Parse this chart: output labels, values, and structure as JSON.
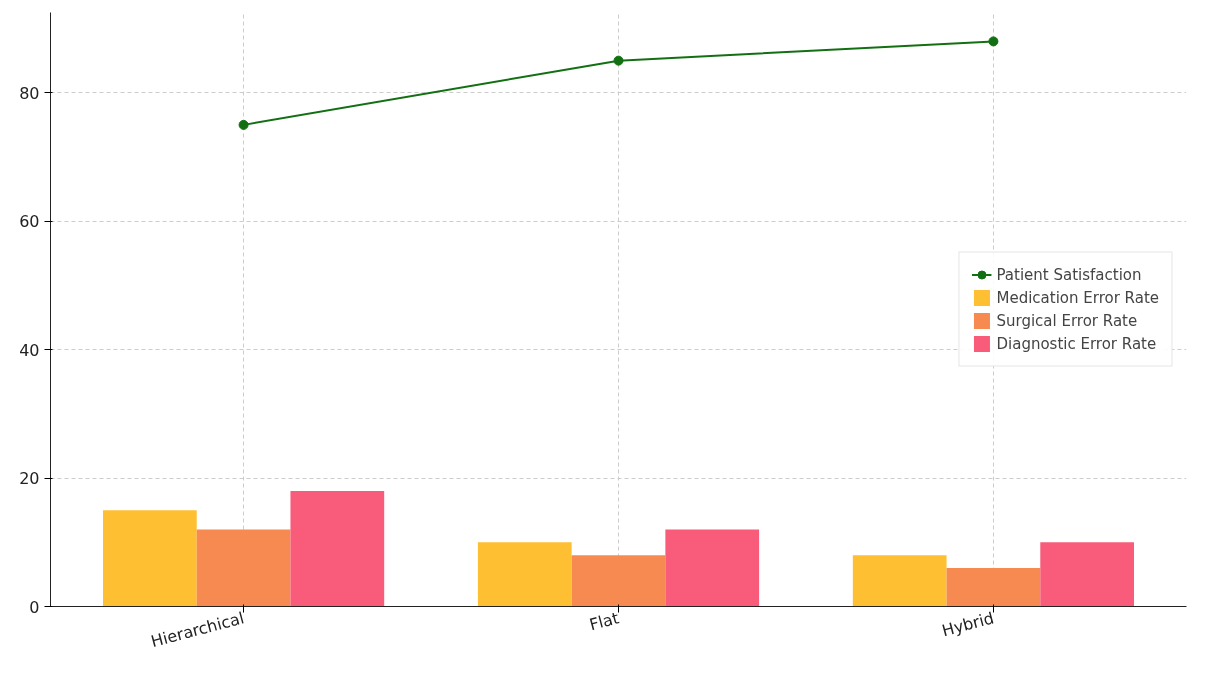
{
  "chart_data": {
    "type": "bar",
    "categories": [
      "Hierarchical",
      "Flat",
      "Hybrid"
    ],
    "series": [
      {
        "name": "Patient Satisfaction",
        "type": "line",
        "color": "#127012",
        "values": [
          75,
          85,
          88
        ],
        "marker": "circle"
      },
      {
        "name": "Medication Error Rate",
        "color": "#ffbf33",
        "values": [
          15,
          10,
          8
        ]
      },
      {
        "name": "Surgical Error Rate",
        "color": "#f78a50",
        "values": [
          12,
          8,
          6
        ]
      },
      {
        "name": "Diagnostic Error Rate",
        "color": "#f95c7a",
        "values": [
          18,
          12,
          10
        ]
      }
    ],
    "ylim": [
      0,
      92.5
    ],
    "yticks": [
      0,
      20,
      40,
      60,
      80
    ],
    "grid": true,
    "legend": "right"
  }
}
